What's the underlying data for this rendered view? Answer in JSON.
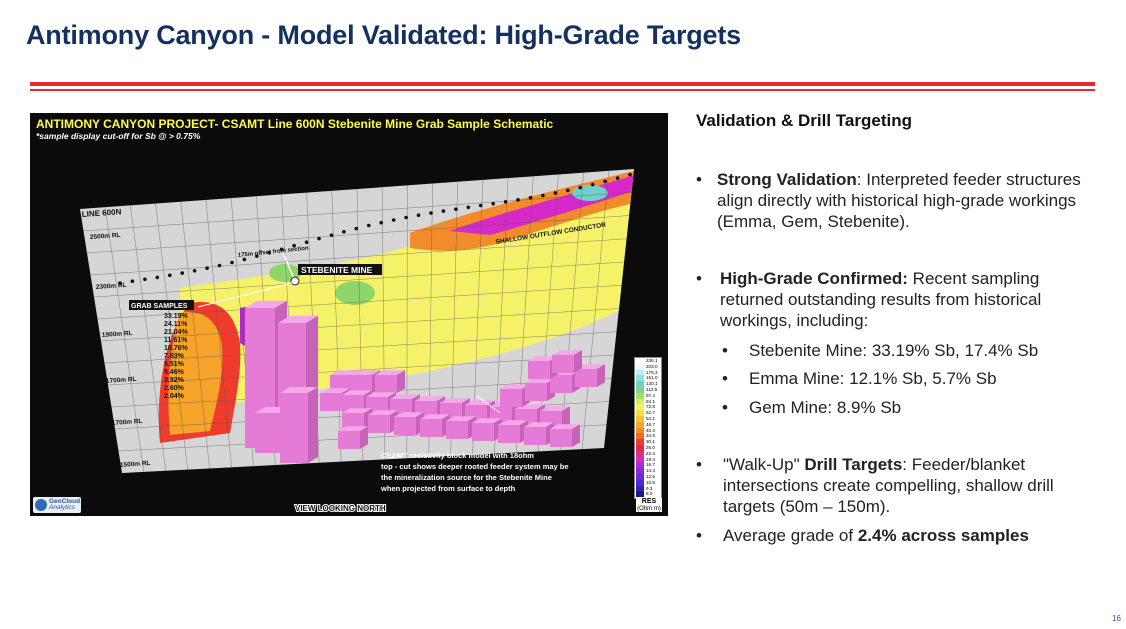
{
  "slide": {
    "title": "Antimony Canyon - Model Validated: High-Grade Targets",
    "page_number": "16"
  },
  "figure": {
    "title": "ANTIMONY CANYON PROJECT- CSAMT Line 600N Stebenite Mine Grab Sample Schematic",
    "subtitle": "*sample display cut-off for Sb @ > 0.75%",
    "line_label": "LINE 600N",
    "rl_labels": [
      "2500m RL",
      "2300m RL",
      "1900m RL",
      "1700m RL",
      "1700m RL",
      "1500m RL"
    ],
    "offset_note": "175m offset from section",
    "mine_label": "STEBENITE MINE",
    "grab_samples_label": "GRAB SAMPLES",
    "grab_samples": [
      "33.19%",
      "24.11%",
      "21.04%",
      "11.61%",
      "10.76%",
      "7.63%",
      "5.51%",
      "5.46%",
      "3.92%",
      "2.60%",
      "2.04%"
    ],
    "conductor_label": "SHALLOW OUTFLOW CONDUCTOR",
    "block_model_note": [
      "CSAMT resistivity block model with 18ohm",
      "top - cut shows deeper rooted feeder system may be",
      "the mineralization source for the Stebenite Mine",
      "when projected from surface to depth"
    ],
    "view_label": "VIEW LOOKING NORTH",
    "legend_values": [
      "236.1",
      "203.0",
      "175.3",
      "151.0",
      "130.1",
      "112.6",
      "97.4",
      "84.1",
      "72.8",
      "62.7",
      "54.1",
      "46.7",
      "40.4",
      "34.9",
      "30.1",
      "26.0",
      "22.4",
      "19.4",
      "16.7",
      "14.4",
      "12.5",
      "10.8",
      "9.3",
      "8.0"
    ],
    "legend_title": "RES",
    "legend_unit": "(Ohm m)",
    "logo_line1": "GeoCloud",
    "logo_line2": "Analytics"
  },
  "colors": {
    "title": "#14305f",
    "rule": "#e42b2b",
    "figure_title": "#fffb4a"
  },
  "right": {
    "heading": "Validation & Drill Targeting",
    "b1_bold": "Strong Validation",
    "b1_l1": ": Interpreted feeder structures",
    "b1_l2": "align directly with historical high-grade workings",
    "b1_l3": "(Emma, Gem, Stebenite).",
    "b2_bold": "High-Grade Confirmed:",
    "b2_l1": " Recent sampling",
    "b2_l2": "returned outstanding results from historical",
    "b2_l3": "workings, including:",
    "sub1": "Stebenite Mine: 33.19% Sb, 17.4% Sb",
    "sub2": "Emma Mine: 12.1% Sb, 5.7% Sb",
    "sub3": "Gem Mine: 8.9% Sb",
    "b3_pre": "\"Walk-Up\" ",
    "b3_bold": "Drill Targets",
    "b3_l1": ": Feeder/blanket",
    "b3_l2": "intersections create compelling, shallow drill",
    "b3_l3": "targets (50m – 150m).",
    "b4_pre": "Average grade of ",
    "b4_bold": "2.4% across samples",
    "bullet": "•"
  }
}
